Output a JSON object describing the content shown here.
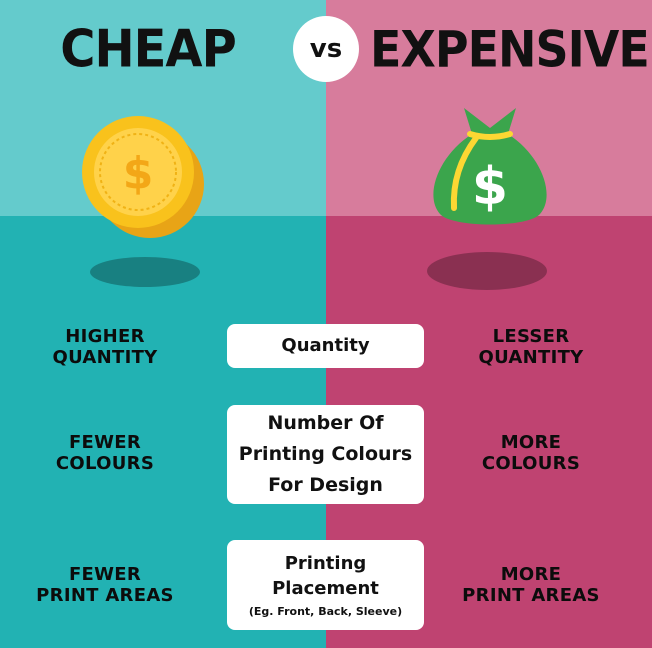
{
  "header": {
    "left_title": "CHEAP",
    "vs_label": "vs",
    "right_title": "EXPENSIVE"
  },
  "icons": {
    "left": "coins-icon",
    "right": "money-bag-icon"
  },
  "colors": {
    "cheap_top": "#64cbcc",
    "cheap_bottom": "#22b2b3",
    "expensive_top": "#d77c9c",
    "expensive_bottom": "#bf4371",
    "coin_gold": "#f6b318",
    "bag_green": "#3ba54c"
  },
  "rows": [
    {
      "left": [
        "HIGHER",
        "QUANTITY"
      ],
      "center": [
        "Quantity"
      ],
      "center_note": "",
      "right": [
        "LESSER",
        "QUANTITY"
      ]
    },
    {
      "left": [
        "FEWER",
        "COLOURS"
      ],
      "center": [
        "Number Of",
        "Printing Colours",
        "For Design"
      ],
      "center_note": "",
      "right": [
        "MORE",
        "COLOURS"
      ]
    },
    {
      "left": [
        "FEWER",
        "PRINT AREAS"
      ],
      "center": [
        "Printing",
        "Placement"
      ],
      "center_note": "(Eg. Front, Back, Sleeve)",
      "right": [
        "MORE",
        "PRINT AREAS"
      ]
    }
  ]
}
